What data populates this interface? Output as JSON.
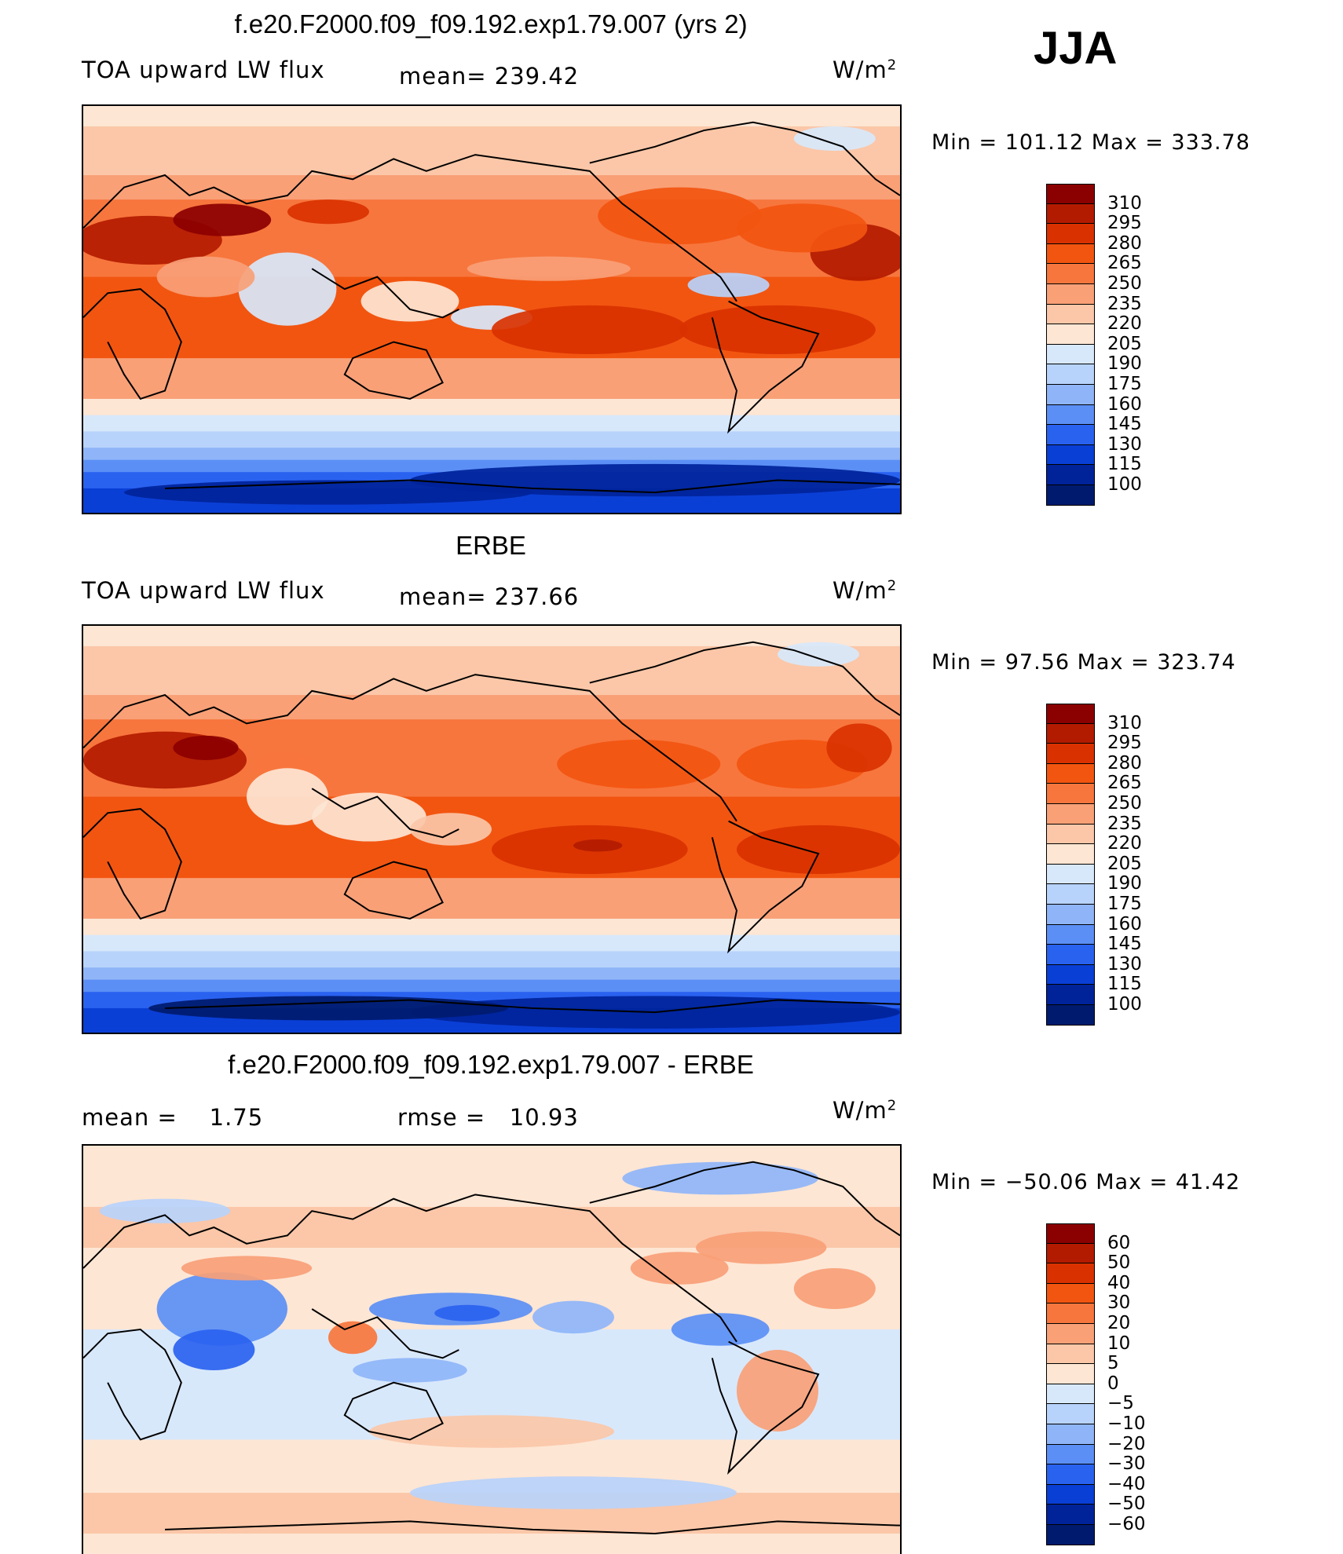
{
  "season": "JJA",
  "units": "W/m",
  "units_sup": "2",
  "chart_data": [
    {
      "type": "heatmap",
      "title": "f.e20.F2000.f09_f09.192.exp1.79.007 (yrs 2)",
      "variable": "TOA upward LW flux",
      "mean_label": "mean=",
      "mean_value": "239.42",
      "min_label": "Min  =",
      "min_value": "101.12",
      "max_label": "Max  =",
      "max_value": "333.78",
      "levels": [
        "310",
        "295",
        "280",
        "265",
        "250",
        "235",
        "220",
        "205",
        "190",
        "175",
        "160",
        "145",
        "130",
        "115",
        "100"
      ],
      "colors": [
        "#8b0000",
        "#b31b00",
        "#d93200",
        "#f25510",
        "#f7763d",
        "#f9a077",
        "#fbc7a8",
        "#fde6d4",
        "#d8e8fb",
        "#b8d3fb",
        "#8fb5f8",
        "#5b8ff5",
        "#2a62f0",
        "#0a3fd6",
        "#00239a",
        "#001a6e"
      ]
    },
    {
      "type": "heatmap",
      "title": "ERBE",
      "variable": "TOA upward LW flux",
      "mean_label": "mean=",
      "mean_value": "237.66",
      "min_label": "Min  =",
      "min_value": "97.56",
      "max_label": "Max  =",
      "max_value": "323.74",
      "levels": [
        "310",
        "295",
        "280",
        "265",
        "250",
        "235",
        "220",
        "205",
        "190",
        "175",
        "160",
        "145",
        "130",
        "115",
        "100"
      ],
      "colors": [
        "#8b0000",
        "#b31b00",
        "#d93200",
        "#f25510",
        "#f7763d",
        "#f9a077",
        "#fbc7a8",
        "#fde6d4",
        "#d8e8fb",
        "#b8d3fb",
        "#8fb5f8",
        "#5b8ff5",
        "#2a62f0",
        "#0a3fd6",
        "#00239a",
        "#001a6e"
      ]
    },
    {
      "type": "heatmap",
      "title": "f.e20.F2000.f09_f09.192.exp1.79.007 - ERBE",
      "mean_label": "mean  =",
      "mean_value": "1.75",
      "rmse_label": "rmse  =",
      "rmse_value": "10.93",
      "min_label": "Min  =",
      "min_value": "−50.06",
      "max_label": "Max  =",
      "max_value": "41.42",
      "levels": [
        "60",
        "50",
        "40",
        "30",
        "20",
        "10",
        "5",
        "0",
        "−5",
        "−10",
        "−20",
        "−30",
        "−40",
        "−50",
        "−60"
      ],
      "colors": [
        "#8b0000",
        "#b31b00",
        "#d93200",
        "#f25510",
        "#f7763d",
        "#f9a077",
        "#fbc7a8",
        "#fde6d4",
        "#d8e8fb",
        "#b8d3fb",
        "#8fb5f8",
        "#5b8ff5",
        "#2a62f0",
        "#0a3fd6",
        "#00239a",
        "#001a6e"
      ]
    }
  ]
}
